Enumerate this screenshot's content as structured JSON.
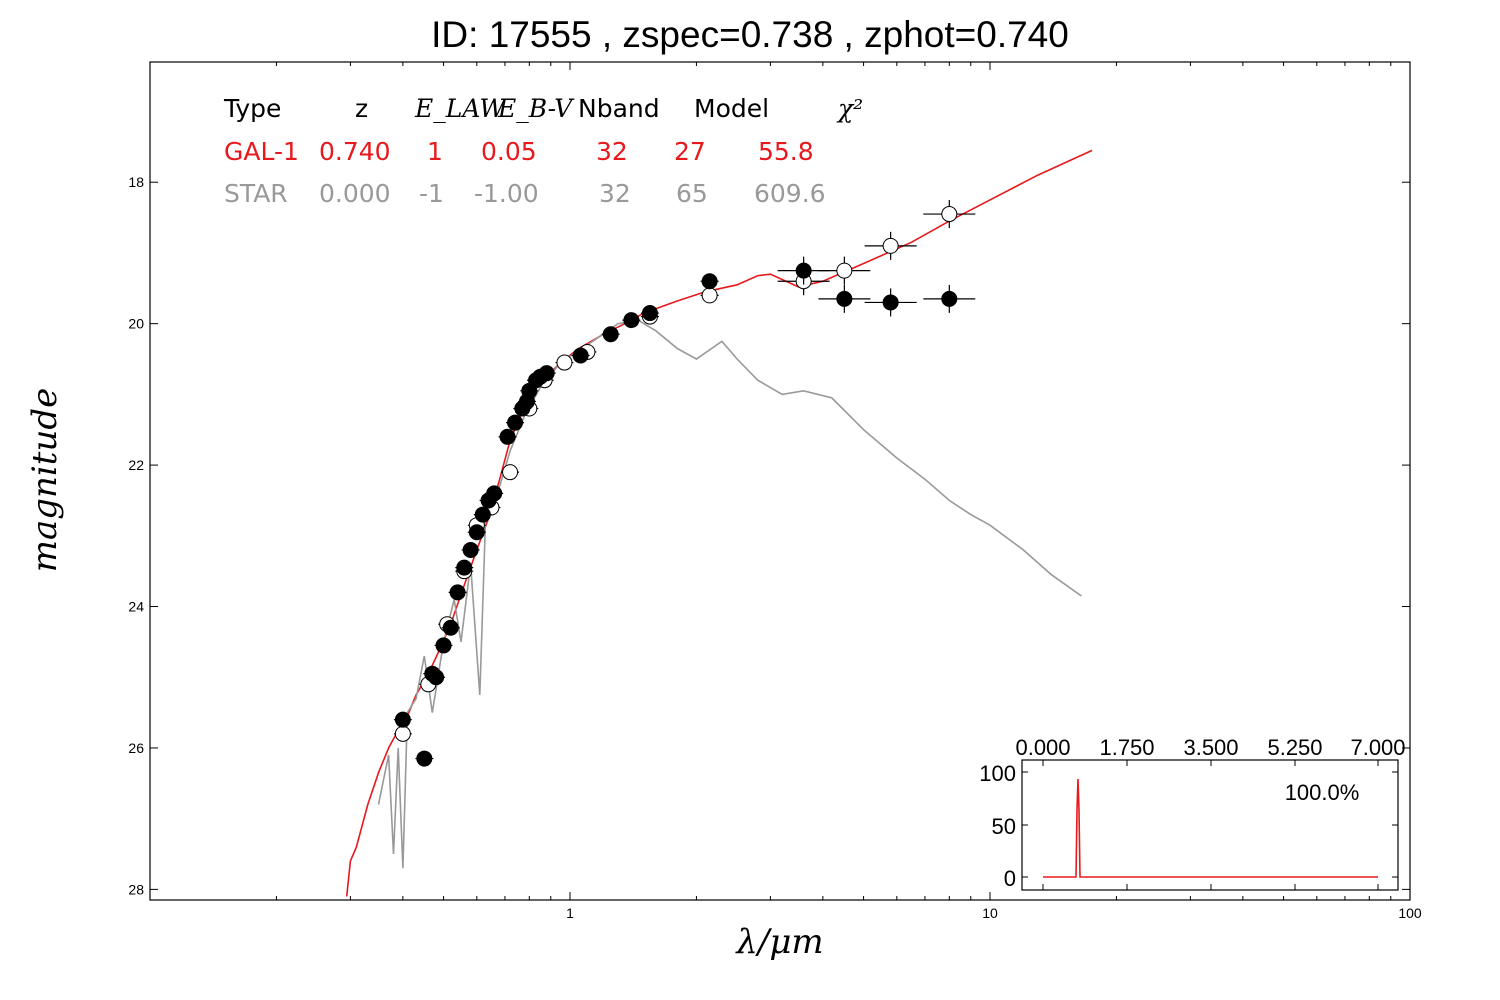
{
  "title": "ID:  17555 , zspec=0.738 , zphot=0.740",
  "colors": {
    "galaxy": "#e8191c",
    "star": "#999999",
    "axis": "#000000"
  },
  "table": {
    "headers": [
      "Type",
      "z",
      "E_LAW",
      "E_B-V",
      "Nband",
      "Model",
      "χ²"
    ],
    "rows": [
      {
        "type": "GAL-1",
        "z": "0.740",
        "elaw": "1",
        "ebv": "0.05",
        "nband": "32",
        "model": "27",
        "chi2": "55.8",
        "color": "#e8191c"
      },
      {
        "type": "STAR",
        "z": "0.000",
        "elaw": "-1",
        "ebv": "-1.00",
        "nband": "32",
        "model": "65",
        "chi2": "609.6",
        "color": "#999999"
      }
    ]
  },
  "inset": {
    "x_ticks": [
      "0.000",
      "1.750",
      "3.500",
      "5.250",
      "7.000"
    ],
    "y_ticks": [
      "100",
      "50",
      "0"
    ],
    "label": "100.0%"
  },
  "chart_data": {
    "type": "scatter",
    "xlabel": "λ/μm",
    "ylabel": "magnitude",
    "xscale": "log",
    "xlim": [
      0.1,
      100
    ],
    "ylim": [
      28.15,
      16.3
    ],
    "x_ticks": [
      "1",
      "10",
      "100"
    ],
    "y_ticks": [
      "18",
      "20",
      "22",
      "24",
      "26",
      "28"
    ],
    "series": [
      {
        "name": "GAL-1 model",
        "kind": "line",
        "points": [
          [
            0.294,
            28.1
          ],
          [
            0.3,
            27.6
          ],
          [
            0.31,
            27.4
          ],
          [
            0.33,
            26.8
          ],
          [
            0.35,
            26.35
          ],
          [
            0.37,
            26.0
          ],
          [
            0.39,
            25.75
          ],
          [
            0.41,
            25.55
          ],
          [
            0.43,
            25.25
          ],
          [
            0.46,
            24.95
          ],
          [
            0.49,
            24.6
          ],
          [
            0.52,
            24.25
          ],
          [
            0.56,
            23.7
          ],
          [
            0.6,
            23.2
          ],
          [
            0.64,
            22.75
          ],
          [
            0.68,
            22.2
          ],
          [
            0.72,
            21.65
          ],
          [
            0.77,
            21.25
          ],
          [
            0.82,
            20.95
          ],
          [
            0.88,
            20.75
          ],
          [
            0.95,
            20.55
          ],
          [
            1.05,
            20.35
          ],
          [
            1.2,
            20.15
          ],
          [
            1.35,
            20.0
          ],
          [
            1.5,
            19.85
          ],
          [
            1.8,
            19.68
          ],
          [
            2.1,
            19.55
          ],
          [
            2.5,
            19.45
          ],
          [
            2.8,
            19.32
          ],
          [
            3.0,
            19.3
          ],
          [
            3.5,
            19.48
          ],
          [
            4.0,
            19.4
          ],
          [
            5.0,
            19.15
          ],
          [
            6.5,
            18.85
          ],
          [
            8.0,
            18.55
          ],
          [
            10.0,
            18.25
          ],
          [
            13.0,
            17.9
          ],
          [
            17.5,
            17.55
          ]
        ]
      },
      {
        "name": "STAR model",
        "kind": "line",
        "points": [
          [
            0.35,
            26.8
          ],
          [
            0.37,
            26.1
          ],
          [
            0.38,
            27.5
          ],
          [
            0.39,
            26.0
          ],
          [
            0.4,
            27.7
          ],
          [
            0.41,
            25.5
          ],
          [
            0.43,
            25.3
          ],
          [
            0.45,
            24.7
          ],
          [
            0.47,
            25.5
          ],
          [
            0.5,
            24.5
          ],
          [
            0.53,
            23.9
          ],
          [
            0.55,
            24.5
          ],
          [
            0.58,
            23.4
          ],
          [
            0.61,
            25.25
          ],
          [
            0.63,
            22.7
          ],
          [
            0.68,
            22.3
          ],
          [
            0.72,
            21.8
          ],
          [
            0.78,
            21.3
          ],
          [
            0.85,
            20.9
          ],
          [
            0.95,
            20.55
          ],
          [
            1.1,
            20.3
          ],
          [
            1.3,
            20.0
          ],
          [
            1.45,
            19.95
          ],
          [
            1.6,
            20.1
          ],
          [
            1.8,
            20.35
          ],
          [
            2.0,
            20.5
          ],
          [
            2.3,
            20.25
          ],
          [
            2.5,
            20.5
          ],
          [
            2.8,
            20.8
          ],
          [
            3.2,
            21.0
          ],
          [
            3.6,
            20.95
          ],
          [
            4.2,
            21.05
          ],
          [
            5.0,
            21.5
          ],
          [
            6.0,
            21.9
          ],
          [
            7.0,
            22.2
          ],
          [
            8.0,
            22.5
          ],
          [
            9.0,
            22.7
          ],
          [
            10.0,
            22.85
          ],
          [
            12.0,
            23.2
          ],
          [
            14.0,
            23.55
          ],
          [
            16.5,
            23.85
          ]
        ]
      },
      {
        "name": "open points",
        "kind": "points",
        "points": [
          [
            0.4,
            25.8
          ],
          [
            0.46,
            25.1
          ],
          [
            0.51,
            24.25
          ],
          [
            0.56,
            23.5
          ],
          [
            0.6,
            22.85
          ],
          [
            0.65,
            22.6
          ],
          [
            0.72,
            22.1
          ],
          [
            0.8,
            21.2
          ],
          [
            0.87,
            20.8
          ],
          [
            0.97,
            20.55
          ],
          [
            1.1,
            20.4
          ],
          [
            1.55,
            19.9
          ],
          [
            2.15,
            19.6
          ],
          [
            3.6,
            19.4
          ],
          [
            4.5,
            19.25
          ],
          [
            5.8,
            18.9
          ],
          [
            8.0,
            18.45
          ]
        ]
      },
      {
        "name": "filled points",
        "kind": "points",
        "points": [
          [
            0.4,
            25.6
          ],
          [
            0.45,
            26.15
          ],
          [
            0.47,
            24.95
          ],
          [
            0.48,
            25.0
          ],
          [
            0.5,
            24.55
          ],
          [
            0.52,
            24.3
          ],
          [
            0.54,
            23.8
          ],
          [
            0.56,
            23.45
          ],
          [
            0.58,
            23.2
          ],
          [
            0.6,
            22.95
          ],
          [
            0.62,
            22.7
          ],
          [
            0.64,
            22.5
          ],
          [
            0.66,
            22.4
          ],
          [
            0.71,
            21.6
          ],
          [
            0.74,
            21.4
          ],
          [
            0.77,
            21.2
          ],
          [
            0.79,
            21.1
          ],
          [
            0.8,
            20.95
          ],
          [
            0.83,
            20.8
          ],
          [
            0.85,
            20.75
          ],
          [
            0.88,
            20.7
          ],
          [
            1.06,
            20.45
          ],
          [
            1.25,
            20.15
          ],
          [
            1.4,
            19.95
          ],
          [
            1.55,
            19.85
          ],
          [
            2.15,
            19.4
          ],
          [
            3.6,
            19.25
          ],
          [
            4.5,
            19.65
          ],
          [
            5.8,
            19.7
          ],
          [
            8.0,
            19.65
          ]
        ]
      }
    ]
  }
}
